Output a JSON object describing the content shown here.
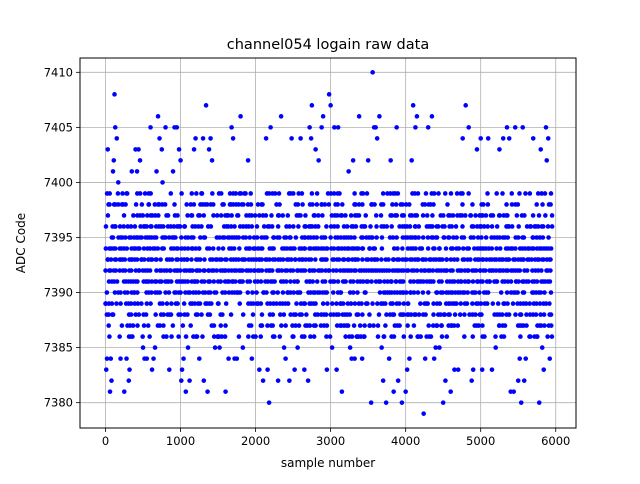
{
  "chart_data": {
    "type": "scatter",
    "title": "channel054 logain raw data",
    "xlabel": "sample number",
    "ylabel": "ADC Code",
    "xlim": [
      -340,
      6270
    ],
    "ylim": [
      7377.7,
      7411.3
    ],
    "xticks": [
      0,
      1000,
      2000,
      3000,
      4000,
      5000,
      6000
    ],
    "yticks": [
      7380,
      7385,
      7390,
      7395,
      7400,
      7405,
      7410
    ],
    "grid": true,
    "legend": "none",
    "series": [
      {
        "color": "#0000ff",
        "marker": "circle",
        "sample_count": 5950,
        "dense_band": [
          7386,
          7399
        ],
        "points": [
          [
            0,
            7389
          ],
          [
            10,
            7383
          ],
          [
            20,
            7384
          ],
          [
            30,
            7403
          ],
          [
            40,
            7398
          ],
          [
            60,
            7381
          ],
          [
            70,
            7384
          ],
          [
            80,
            7382
          ],
          [
            100,
            7401
          ],
          [
            110,
            7402
          ],
          [
            120,
            7408
          ],
          [
            130,
            7405
          ],
          [
            150,
            7404
          ],
          [
            170,
            7400
          ],
          [
            200,
            7384
          ],
          [
            250,
            7381
          ],
          [
            280,
            7384
          ],
          [
            310,
            7382
          ],
          [
            320,
            7383
          ],
          [
            350,
            7401
          ],
          [
            400,
            7403
          ],
          [
            420,
            7401
          ],
          [
            440,
            7403
          ],
          [
            460,
            7402
          ],
          [
            500,
            7385
          ],
          [
            520,
            7384
          ],
          [
            550,
            7384
          ],
          [
            600,
            7405
          ],
          [
            620,
            7383
          ],
          [
            640,
            7384
          ],
          [
            660,
            7385
          ],
          [
            680,
            7401
          ],
          [
            700,
            7406
          ],
          [
            720,
            7404
          ],
          [
            750,
            7403
          ],
          [
            760,
            7400
          ],
          [
            800,
            7405
          ],
          [
            850,
            7383
          ],
          [
            880,
            7386
          ],
          [
            900,
            7401
          ],
          [
            920,
            7405
          ],
          [
            950,
            7405
          ],
          [
            980,
            7403
          ],
          [
            1000,
            7402
          ],
          [
            1010,
            7382
          ],
          [
            1020,
            7383
          ],
          [
            1040,
            7384
          ],
          [
            1070,
            7381
          ],
          [
            1100,
            7385
          ],
          [
            1120,
            7382
          ],
          [
            1180,
            7403
          ],
          [
            1200,
            7404
          ],
          [
            1220,
            7386
          ],
          [
            1250,
            7384
          ],
          [
            1300,
            7404
          ],
          [
            1310,
            7382
          ],
          [
            1340,
            7407
          ],
          [
            1360,
            7381
          ],
          [
            1380,
            7403
          ],
          [
            1400,
            7404
          ],
          [
            1420,
            7402
          ],
          [
            1460,
            7385
          ],
          [
            1500,
            7386
          ],
          [
            1520,
            7385
          ],
          [
            1600,
            7381
          ],
          [
            1640,
            7384
          ],
          [
            1660,
            7399
          ],
          [
            1680,
            7405
          ],
          [
            1700,
            7404
          ],
          [
            1720,
            7384
          ],
          [
            1750,
            7384
          ],
          [
            1800,
            7406
          ],
          [
            1830,
            7385
          ],
          [
            1900,
            7402
          ],
          [
            1950,
            7384
          ],
          [
            2000,
            7386
          ],
          [
            2050,
            7383
          ],
          [
            2100,
            7382
          ],
          [
            2140,
            7404
          ],
          [
            2160,
            7383
          ],
          [
            2180,
            7380
          ],
          [
            2200,
            7405
          ],
          [
            2250,
            7386
          ],
          [
            2300,
            7382
          ],
          [
            2340,
            7406
          ],
          [
            2380,
            7385
          ],
          [
            2400,
            7384
          ],
          [
            2450,
            7382
          ],
          [
            2480,
            7404
          ],
          [
            2520,
            7383
          ],
          [
            2560,
            7385
          ],
          [
            2600,
            7404
          ],
          [
            2650,
            7383
          ],
          [
            2700,
            7382
          ],
          [
            2720,
            7405
          ],
          [
            2740,
            7404
          ],
          [
            2750,
            7407
          ],
          [
            2780,
            7386
          ],
          [
            2800,
            7403
          ],
          [
            2840,
            7402
          ],
          [
            2880,
            7405
          ],
          [
            2900,
            7406
          ],
          [
            2950,
            7383
          ],
          [
            2980,
            7408
          ],
          [
            3000,
            7407
          ],
          [
            3020,
            7385
          ],
          [
            3050,
            7405
          ],
          [
            3080,
            7383
          ],
          [
            3100,
            7405
          ],
          [
            3150,
            7381
          ],
          [
            3200,
            7386
          ],
          [
            3240,
            7401
          ],
          [
            3260,
            7385
          ],
          [
            3280,
            7384
          ],
          [
            3300,
            7402
          ],
          [
            3320,
            7384
          ],
          [
            3350,
            7386
          ],
          [
            3380,
            7406
          ],
          [
            3420,
            7384
          ],
          [
            3450,
            7386
          ],
          [
            3500,
            7402
          ],
          [
            3540,
            7380
          ],
          [
            3560,
            7410
          ],
          [
            3580,
            7405
          ],
          [
            3600,
            7405
          ],
          [
            3620,
            7404
          ],
          [
            3650,
            7406
          ],
          [
            3680,
            7385
          ],
          [
            3700,
            7382
          ],
          [
            3740,
            7380
          ],
          [
            3780,
            7384
          ],
          [
            3800,
            7402
          ],
          [
            3840,
            7381
          ],
          [
            3880,
            7405
          ],
          [
            3900,
            7382
          ],
          [
            3950,
            7380
          ],
          [
            4000,
            7381
          ],
          [
            4020,
            7383
          ],
          [
            4050,
            7384
          ],
          [
            4080,
            7402
          ],
          [
            4100,
            7407
          ],
          [
            4130,
            7405
          ],
          [
            4150,
            7406
          ],
          [
            4200,
            7386
          ],
          [
            4240,
            7379
          ],
          [
            4260,
            7384
          ],
          [
            4300,
            7405
          ],
          [
            4350,
            7406
          ],
          [
            4380,
            7384
          ],
          [
            4400,
            7385
          ],
          [
            4450,
            7385
          ],
          [
            4500,
            7380
          ],
          [
            4530,
            7382
          ],
          [
            4600,
            7381
          ],
          [
            4650,
            7383
          ],
          [
            4700,
            7383
          ],
          [
            4760,
            7404
          ],
          [
            4800,
            7407
          ],
          [
            4840,
            7405
          ],
          [
            4880,
            7382
          ],
          [
            4900,
            7383
          ],
          [
            4950,
            7403
          ],
          [
            5000,
            7404
          ],
          [
            5020,
            7383
          ],
          [
            5050,
            7386
          ],
          [
            5100,
            7404
          ],
          [
            5150,
            7383
          ],
          [
            5200,
            7385
          ],
          [
            5250,
            7403
          ],
          [
            5300,
            7404
          ],
          [
            5350,
            7405
          ],
          [
            5380,
            7404
          ],
          [
            5400,
            7381
          ],
          [
            5440,
            7381
          ],
          [
            5460,
            7405
          ],
          [
            5500,
            7382
          ],
          [
            5520,
            7384
          ],
          [
            5540,
            7380
          ],
          [
            5560,
            7405
          ],
          [
            5580,
            7382
          ],
          [
            5600,
            7384
          ],
          [
            5650,
            7386
          ],
          [
            5700,
            7404
          ],
          [
            5750,
            7386
          ],
          [
            5780,
            7380
          ],
          [
            5800,
            7403
          ],
          [
            5820,
            7385
          ],
          [
            5840,
            7383
          ],
          [
            5870,
            7405
          ],
          [
            5880,
            7402
          ],
          [
            5900,
            7404
          ],
          [
            5920,
            7384
          ]
        ]
      }
    ]
  }
}
